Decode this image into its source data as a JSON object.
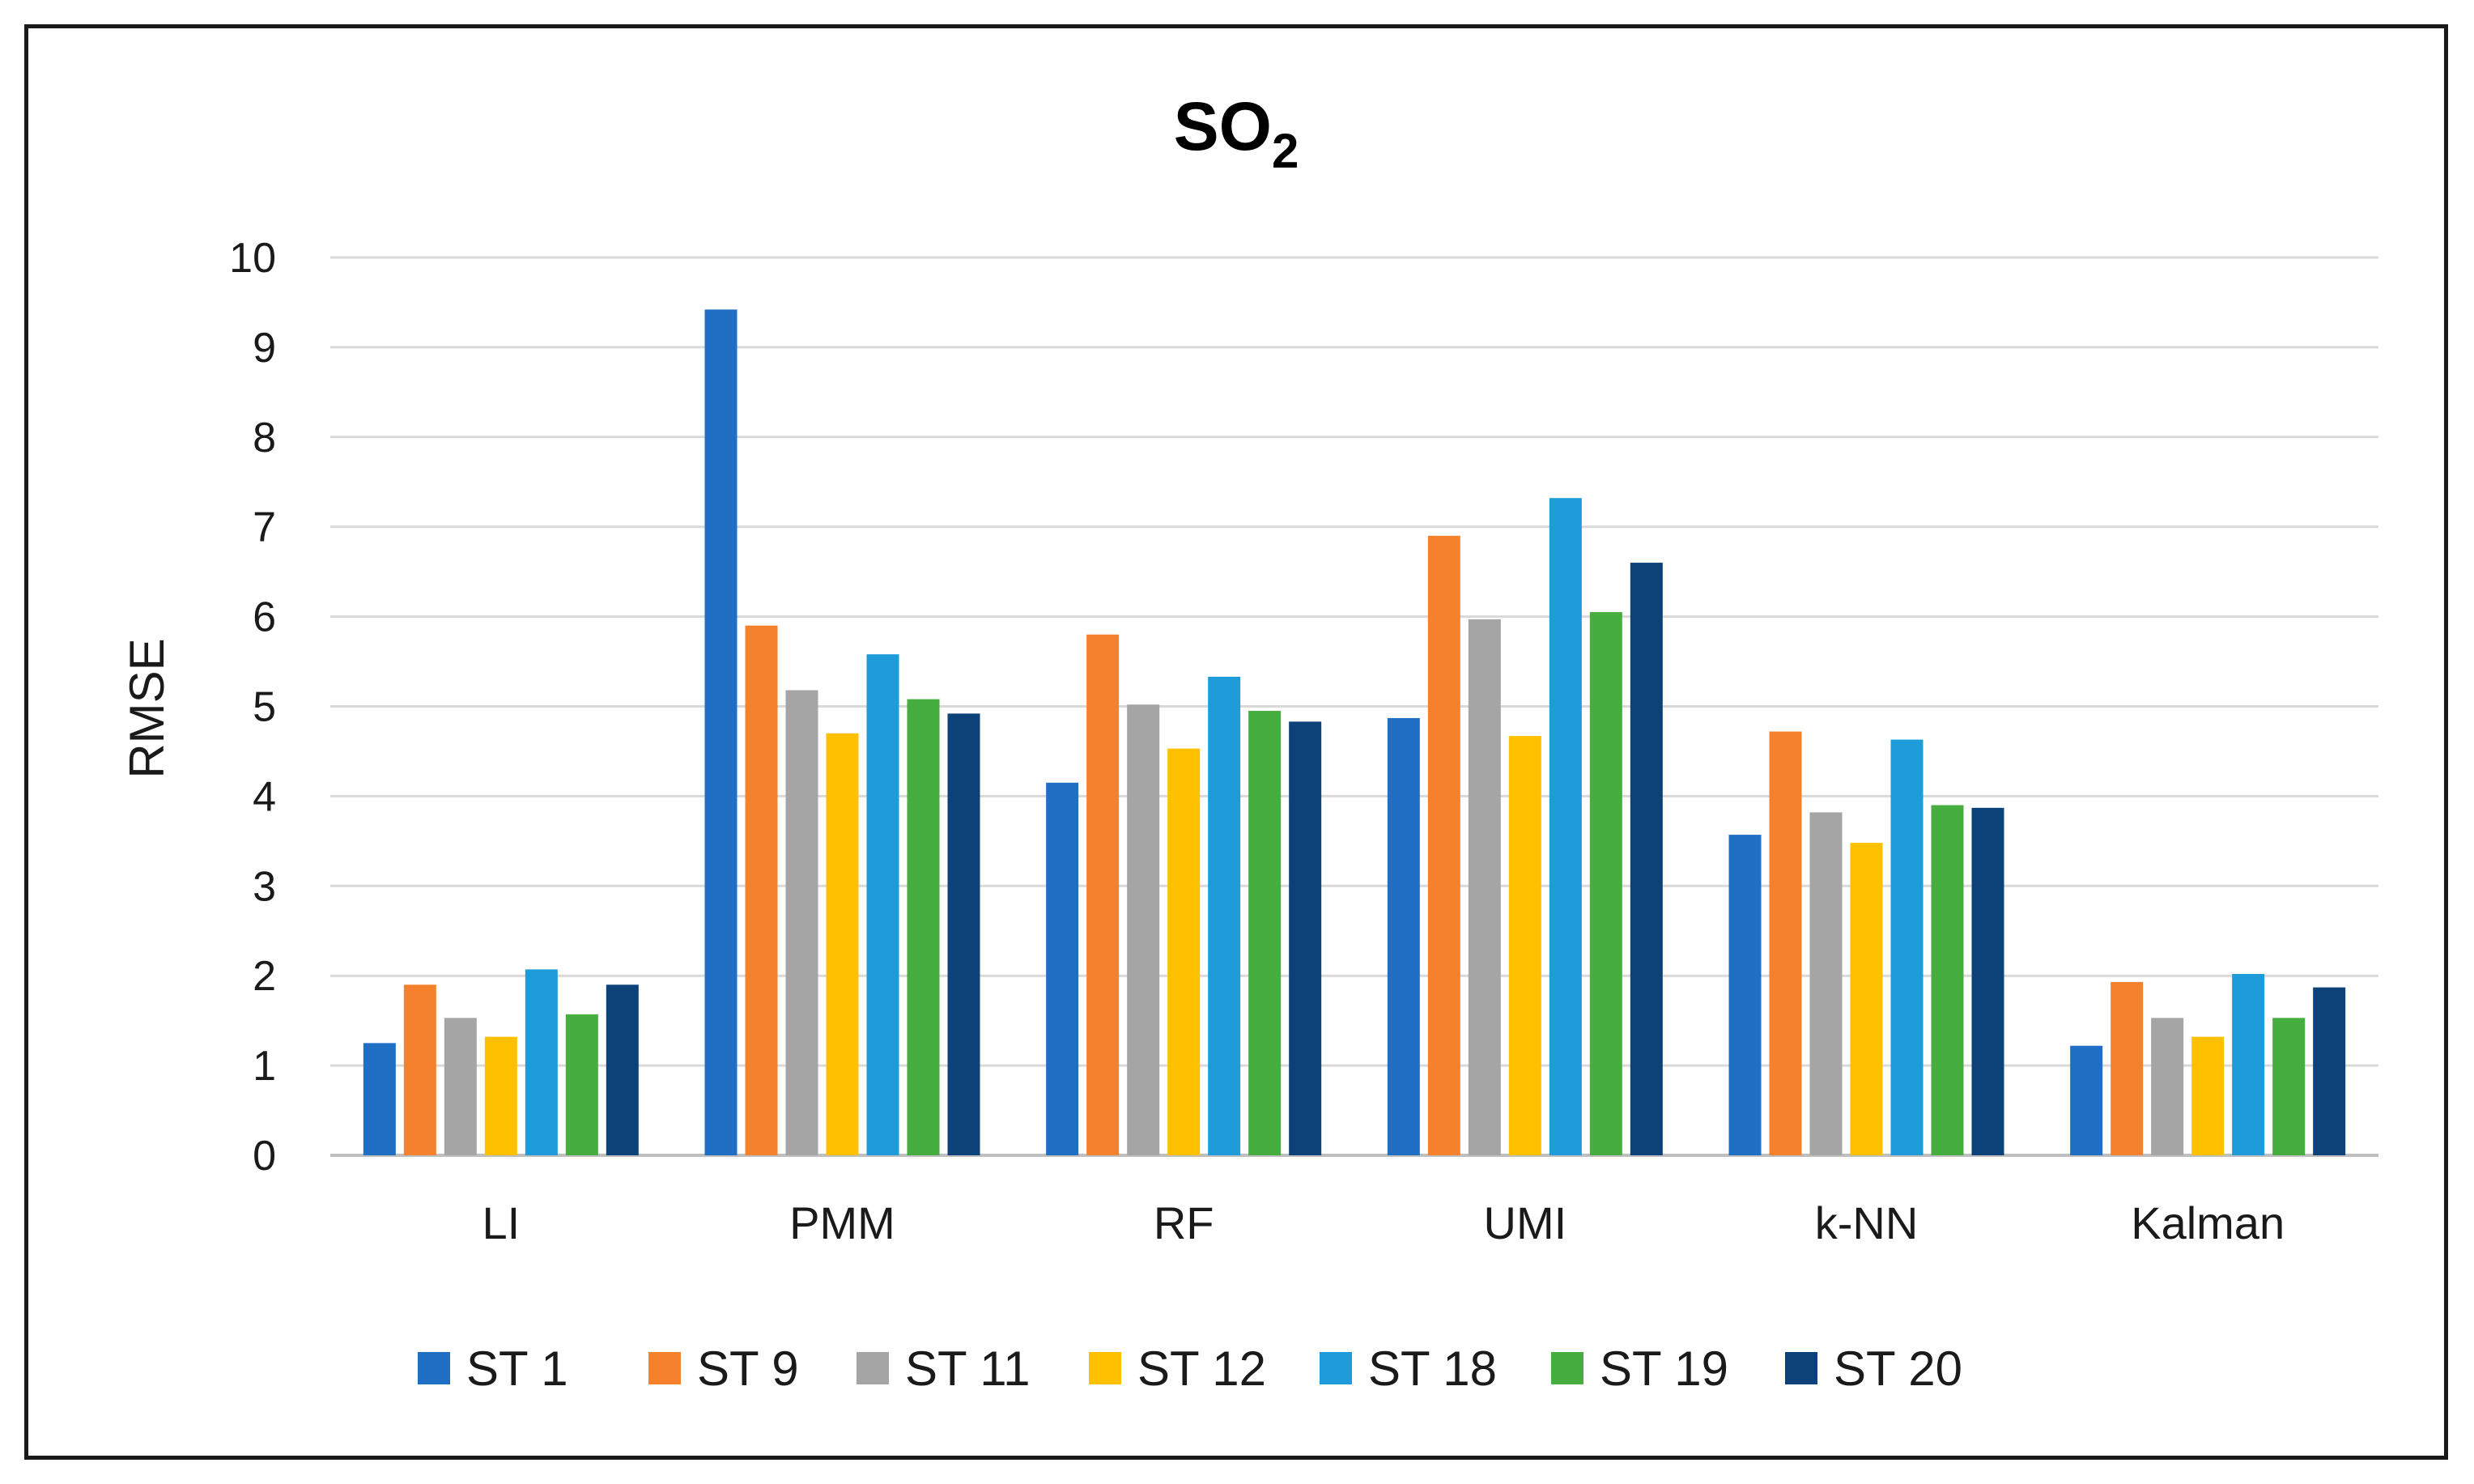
{
  "chart_data": {
    "type": "bar",
    "title": "SO",
    "title_subscript": "2",
    "xlabel": "",
    "ylabel": "RMSE",
    "ylim": [
      0,
      10
    ],
    "yticks": [
      "0",
      "1",
      "2",
      "3",
      "4",
      "5",
      "6",
      "7",
      "8",
      "9",
      "10"
    ],
    "grid": true,
    "legend_position": "bottom",
    "categories": [
      "LI",
      "PMM",
      "RF",
      "UMI",
      "k-NN",
      "Kalman"
    ],
    "series": [
      {
        "name": "ST 1",
        "color": "#1f6fc5",
        "values": [
          1.25,
          9.42,
          4.15,
          4.87,
          3.57,
          1.22
        ]
      },
      {
        "name": "ST 9",
        "color": "#f5812d",
        "values": [
          1.9,
          5.9,
          5.8,
          6.9,
          4.72,
          1.93
        ]
      },
      {
        "name": "ST 11",
        "color": "#a5a5a5",
        "values": [
          1.53,
          5.18,
          5.02,
          5.97,
          3.82,
          1.53
        ]
      },
      {
        "name": "ST 12",
        "color": "#ffc000",
        "values": [
          1.32,
          4.7,
          4.53,
          4.67,
          3.48,
          1.32
        ]
      },
      {
        "name": "ST 18",
        "color": "#1e9bd9",
        "values": [
          2.07,
          5.58,
          5.33,
          7.32,
          4.63,
          2.02
        ]
      },
      {
        "name": "ST 19",
        "color": "#46ad3f",
        "values": [
          1.57,
          5.08,
          4.95,
          6.05,
          3.9,
          1.53
        ]
      },
      {
        "name": "ST 20",
        "color": "#0d4278",
        "values": [
          1.9,
          4.92,
          4.83,
          6.6,
          3.87,
          1.87
        ]
      }
    ]
  }
}
